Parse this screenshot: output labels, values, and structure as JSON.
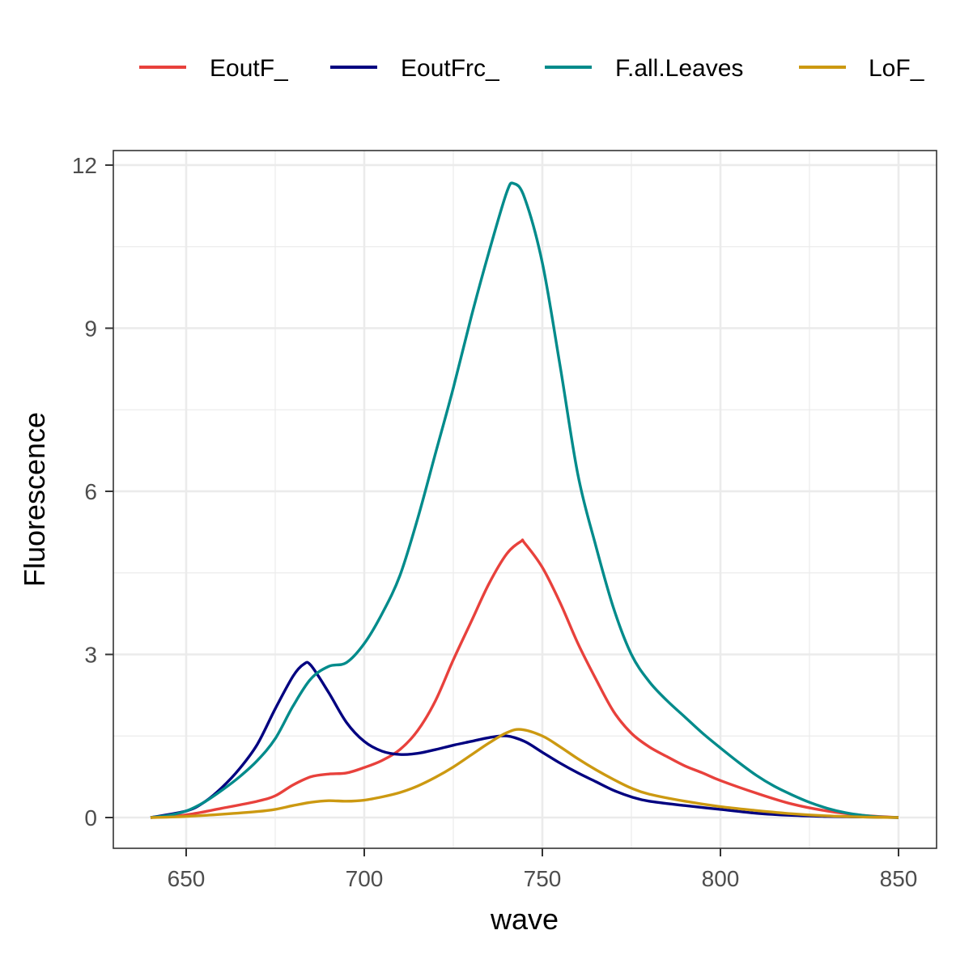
{
  "chart_data": {
    "type": "line",
    "title": "",
    "xlabel": "wave",
    "ylabel": "Fluorescence",
    "xlim": [
      630,
      862
    ],
    "ylim": [
      -0.57,
      12.27
    ],
    "xticks": [
      650,
      700,
      750,
      800,
      850
    ],
    "yticks": [
      0,
      3,
      6,
      9,
      12
    ],
    "grid": true,
    "legend_position": "top",
    "series": [
      {
        "name": "EoutF_",
        "color": "#E8413C",
        "x": [
          640,
          650,
          660,
          670,
          675,
          680,
          685,
          690,
          695,
          700,
          705,
          710,
          715,
          720,
          725,
          730,
          735,
          740,
          744,
          745,
          750,
          755,
          760,
          765,
          770,
          775,
          780,
          785,
          790,
          795,
          800,
          810,
          820,
          830,
          840,
          850
        ],
        "values": [
          0,
          0.05,
          0.17,
          0.3,
          0.4,
          0.6,
          0.75,
          0.8,
          0.82,
          0.92,
          1.05,
          1.25,
          1.6,
          2.15,
          2.9,
          3.6,
          4.3,
          4.85,
          5.08,
          5.05,
          4.6,
          3.95,
          3.2,
          2.55,
          1.95,
          1.55,
          1.3,
          1.12,
          0.95,
          0.82,
          0.68,
          0.45,
          0.25,
          0.12,
          0.04,
          0
        ]
      },
      {
        "name": "EoutFrc_",
        "color": "#000080",
        "x": [
          640,
          650,
          655,
          660,
          665,
          670,
          675,
          680,
          683,
          685,
          690,
          695,
          700,
          705,
          710,
          715,
          720,
          725,
          730,
          735,
          740,
          745,
          750,
          755,
          760,
          765,
          770,
          775,
          780,
          790,
          800,
          810,
          820,
          830,
          840,
          850
        ],
        "values": [
          0,
          0.12,
          0.28,
          0.55,
          0.9,
          1.35,
          2.0,
          2.6,
          2.82,
          2.8,
          2.3,
          1.75,
          1.4,
          1.22,
          1.16,
          1.18,
          1.25,
          1.33,
          1.4,
          1.47,
          1.5,
          1.4,
          1.2,
          1.0,
          0.82,
          0.66,
          0.5,
          0.38,
          0.3,
          0.22,
          0.15,
          0.08,
          0.04,
          0.02,
          0.01,
          0
        ]
      },
      {
        "name": "F.all.Leaves",
        "color": "#008B8B",
        "x": [
          640,
          645,
          650,
          655,
          660,
          665,
          670,
          675,
          680,
          685,
          690,
          695,
          700,
          705,
          710,
          715,
          720,
          725,
          730,
          735,
          740,
          742,
          745,
          750,
          755,
          760,
          765,
          770,
          775,
          780,
          785,
          790,
          795,
          800,
          805,
          810,
          815,
          820,
          825,
          830,
          835,
          840,
          845,
          850
        ],
        "values": [
          0,
          0.04,
          0.12,
          0.28,
          0.5,
          0.75,
          1.05,
          1.45,
          2.05,
          2.55,
          2.78,
          2.85,
          3.2,
          3.75,
          4.45,
          5.5,
          6.7,
          7.9,
          9.2,
          10.4,
          11.5,
          11.66,
          11.4,
          10.2,
          8.3,
          6.3,
          5.0,
          3.85,
          3.0,
          2.5,
          2.15,
          1.85,
          1.55,
          1.28,
          1.02,
          0.78,
          0.58,
          0.42,
          0.28,
          0.17,
          0.09,
          0.04,
          0.01,
          0
        ]
      },
      {
        "name": "LoF_",
        "color": "#CC9911",
        "x": [
          640,
          650,
          660,
          670,
          675,
          680,
          685,
          690,
          695,
          700,
          705,
          710,
          715,
          720,
          725,
          730,
          735,
          740,
          744,
          750,
          755,
          760,
          765,
          770,
          775,
          780,
          790,
          800,
          810,
          820,
          830,
          840,
          850
        ],
        "values": [
          0,
          0.02,
          0.06,
          0.11,
          0.15,
          0.22,
          0.28,
          0.31,
          0.3,
          0.32,
          0.38,
          0.46,
          0.58,
          0.74,
          0.93,
          1.15,
          1.37,
          1.56,
          1.62,
          1.5,
          1.3,
          1.08,
          0.88,
          0.7,
          0.54,
          0.43,
          0.3,
          0.2,
          0.13,
          0.07,
          0.03,
          0.01,
          0
        ]
      }
    ]
  },
  "legend": {
    "items": [
      {
        "label": "EoutF_",
        "color": "#E8413C"
      },
      {
        "label": "EoutFrc_",
        "color": "#000080"
      },
      {
        "label": "F.all.Leaves",
        "color": "#008B8B"
      },
      {
        "label": "LoF_",
        "color": "#CC9911"
      }
    ]
  },
  "axes": {
    "x_title": "wave",
    "y_title": "Fluorescence",
    "x_tick_labels": [
      "650",
      "700",
      "750",
      "800",
      "850"
    ],
    "y_tick_labels": [
      "0",
      "3",
      "6",
      "9",
      "12"
    ]
  }
}
